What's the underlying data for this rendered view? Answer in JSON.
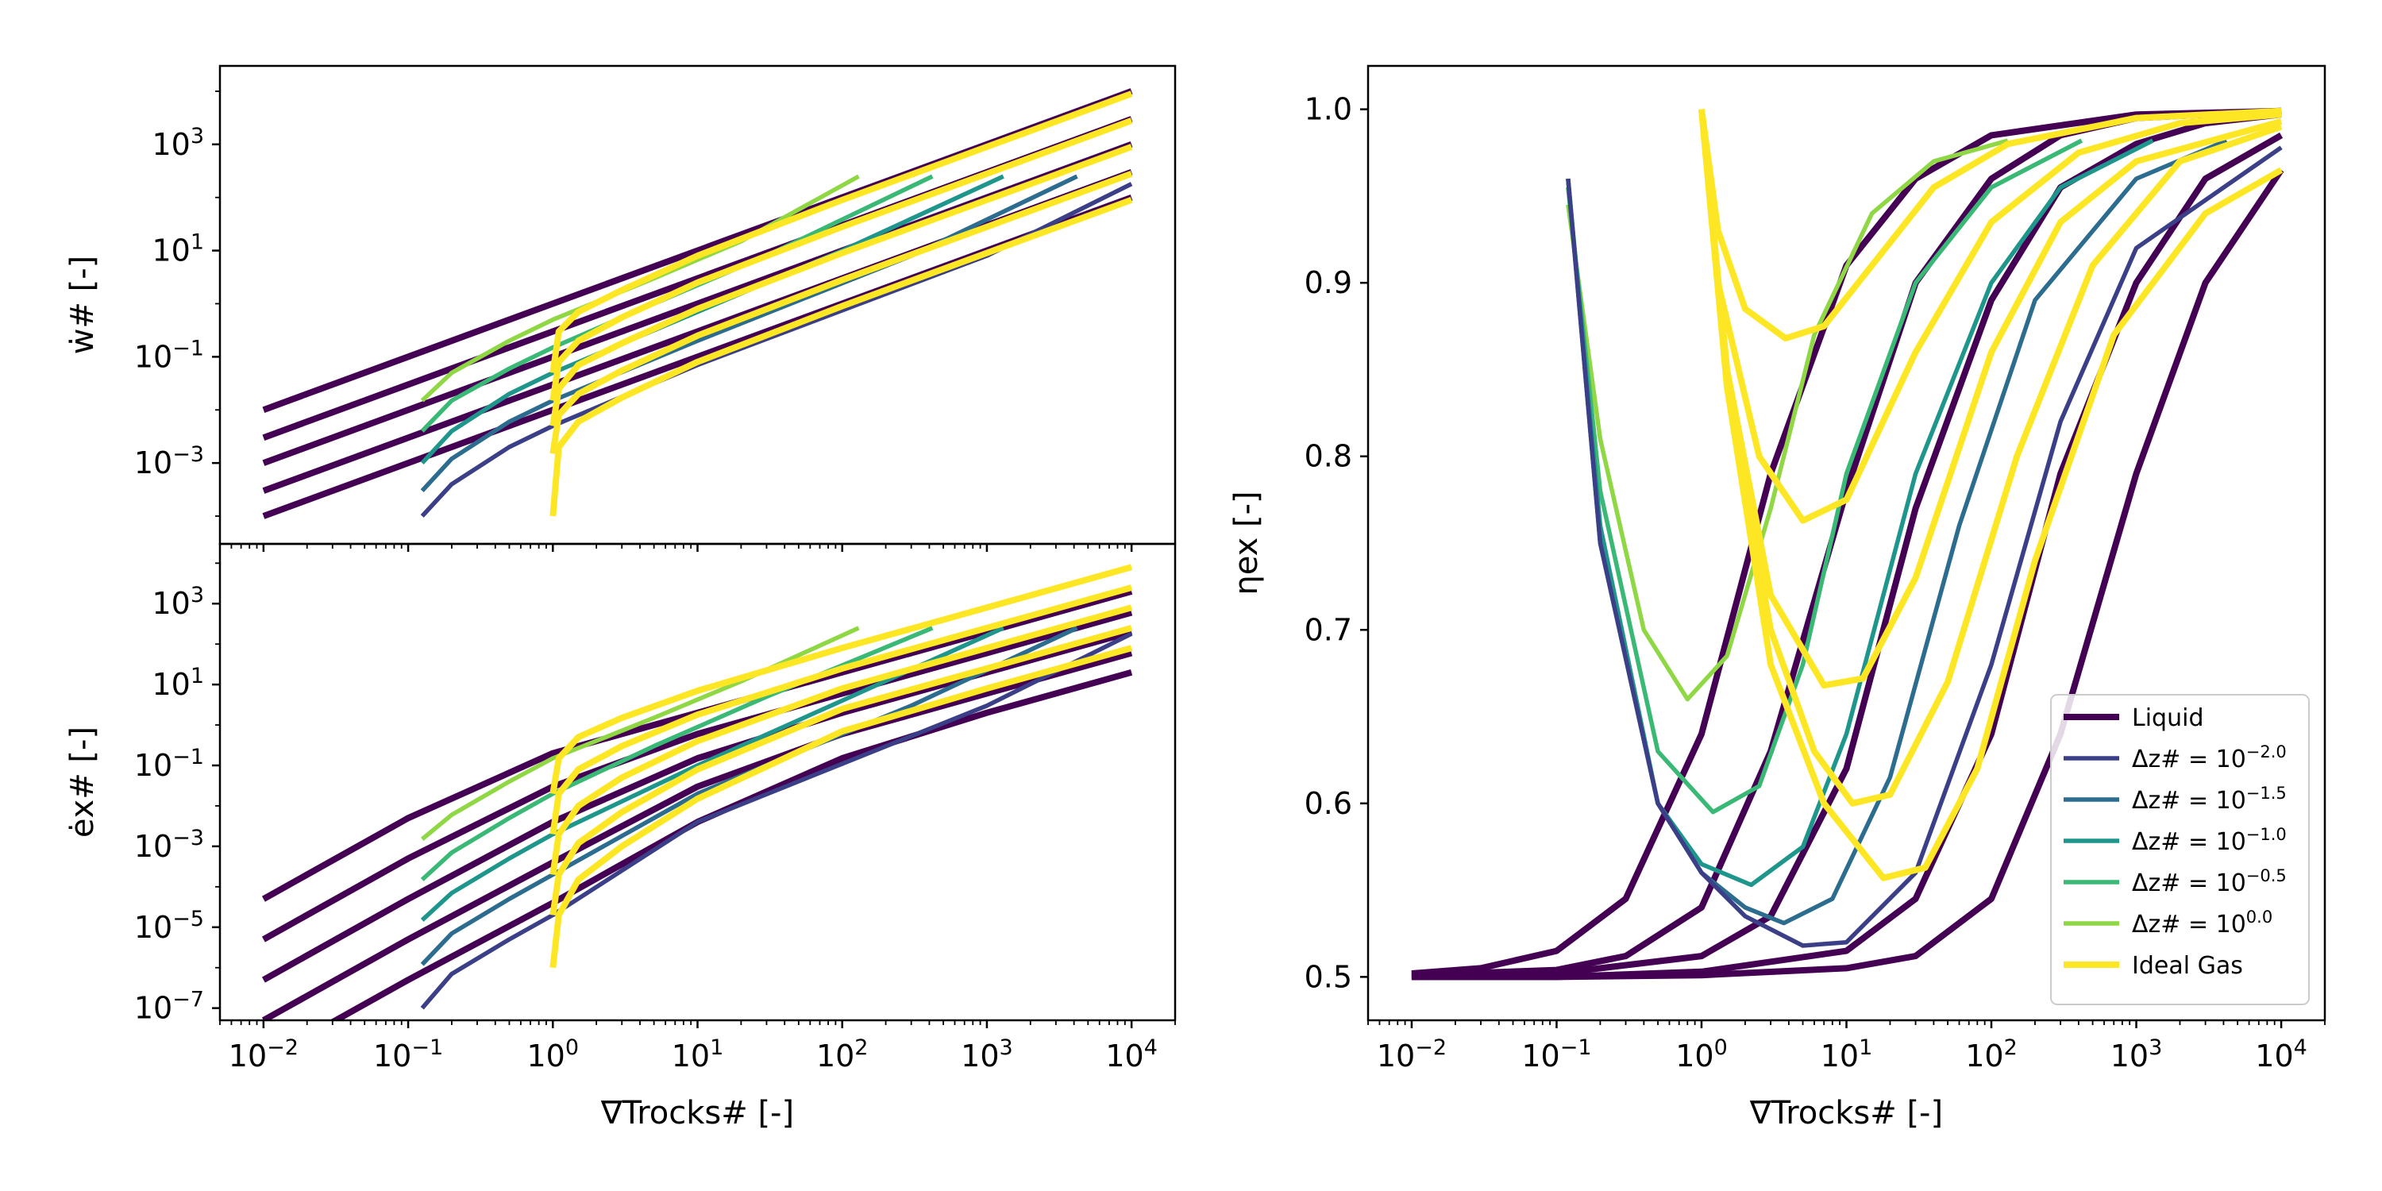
{
  "colors": {
    "liquid": "#440154",
    "dz_-2.0": "#3b3f87",
    "dz_-1.5": "#2c6c8e",
    "dz_-1.0": "#1f968b",
    "dz_-0.5": "#3ab875",
    "dz_0.0": "#8fd744",
    "ideal_gas": "#fde725"
  },
  "chart_data": [
    {
      "type": "line",
      "panel": "top-left",
      "xscale": "log",
      "yscale": "log",
      "xlim": [
        0.005,
        20000
      ],
      "ylim": [
        3e-05,
        30000
      ],
      "ylabel": "ẇ# [-]",
      "yticks": [
        "10^-3",
        "10^-1",
        "10^1",
        "10^3"
      ],
      "series": [
        {
          "group": "liquid",
          "x": [
            0.01,
            10000
          ],
          "y": [
            0.01,
            10000
          ]
        },
        {
          "group": "liquid",
          "x": [
            0.01,
            10000
          ],
          "y": [
            0.003,
            3000
          ]
        },
        {
          "group": "liquid",
          "x": [
            0.01,
            10000
          ],
          "y": [
            0.001,
            1000
          ]
        },
        {
          "group": "liquid",
          "x": [
            0.01,
            10000
          ],
          "y": [
            0.0003,
            300
          ]
        },
        {
          "group": "liquid",
          "x": [
            0.01,
            10000
          ],
          "y": [
            0.0001,
            100
          ]
        },
        {
          "group": "dz_0.0",
          "x": [
            0.125,
            0.2,
            0.5,
            1,
            5,
            20,
            130
          ],
          "y": [
            0.015,
            0.05,
            0.2,
            0.5,
            3,
            15,
            250
          ]
        },
        {
          "group": "dz_-0.5",
          "x": [
            0.125,
            0.2,
            0.5,
            1,
            5,
            30,
            420
          ],
          "y": [
            0.004,
            0.015,
            0.06,
            0.15,
            1,
            8,
            250
          ]
        },
        {
          "group": "dz_-1.0",
          "x": [
            0.125,
            0.2,
            0.5,
            1,
            10,
            100,
            1300
          ],
          "y": [
            0.001,
            0.004,
            0.02,
            0.05,
            0.7,
            10,
            250
          ]
        },
        {
          "group": "dz_-1.5",
          "x": [
            0.125,
            0.2,
            0.5,
            1,
            10,
            300,
            4200
          ],
          "y": [
            0.0003,
            0.0012,
            0.006,
            0.015,
            0.2,
            8,
            250
          ]
        },
        {
          "group": "dz_-2.0",
          "x": [
            0.125,
            0.2,
            0.5,
            1,
            10,
            1000,
            10000
          ],
          "y": [
            0.0001,
            0.0004,
            0.002,
            0.005,
            0.07,
            8,
            180
          ]
        },
        {
          "group": "ideal_gas",
          "x": [
            1,
            1.1,
            1.5,
            3,
            10,
            100,
            1000,
            10000
          ],
          "y": [
            0.05,
            0.3,
            0.7,
            1.8,
            8,
            90,
            900,
            9000
          ]
        },
        {
          "group": "ideal_gas",
          "x": [
            1,
            1.1,
            1.5,
            3,
            10,
            100,
            1000,
            10000
          ],
          "y": [
            0.015,
            0.08,
            0.2,
            0.55,
            2.5,
            28,
            280,
            2800
          ]
        },
        {
          "group": "ideal_gas",
          "x": [
            1,
            1.1,
            1.5,
            3,
            10,
            100,
            1000,
            10000
          ],
          "y": [
            0.005,
            0.025,
            0.07,
            0.18,
            0.8,
            9,
            90,
            900
          ]
        },
        {
          "group": "ideal_gas",
          "x": [
            1,
            1.1,
            1.5,
            3,
            10,
            100,
            1000,
            10000
          ],
          "y": [
            0.0015,
            0.008,
            0.02,
            0.055,
            0.25,
            2.8,
            28,
            280
          ]
        },
        {
          "group": "ideal_gas",
          "x": [
            1,
            1.1,
            1.5,
            3,
            10,
            100,
            1000,
            10000
          ],
          "y": [
            0.0001,
            0.002,
            0.006,
            0.017,
            0.08,
            0.9,
            9,
            90
          ]
        }
      ]
    },
    {
      "type": "line",
      "panel": "bottom-left",
      "xscale": "log",
      "yscale": "log",
      "xlim": [
        0.005,
        20000
      ],
      "ylim": [
        5e-08,
        30000
      ],
      "xlabel": "∇Trocks# [-]",
      "ylabel": "ėx# [-]",
      "xticks": [
        "10^-2",
        "10^-1",
        "10^0",
        "10^1",
        "10^2",
        "10^3",
        "10^4"
      ],
      "yticks": [
        "10^-7",
        "10^-5",
        "10^-3",
        "10^-1",
        "10^1",
        "10^3"
      ],
      "series": [
        {
          "group": "liquid",
          "x": [
            0.01,
            0.1,
            1,
            10,
            100,
            1000,
            10000
          ],
          "y": [
            5e-05,
            0.005,
            0.2,
            2,
            20,
            200,
            2000
          ]
        },
        {
          "group": "liquid",
          "x": [
            0.01,
            0.1,
            1,
            10,
            100,
            1000,
            10000
          ],
          "y": [
            5e-06,
            0.0005,
            0.03,
            0.6,
            6,
            60,
            600
          ]
        },
        {
          "group": "liquid",
          "x": [
            0.01,
            0.1,
            1,
            10,
            100,
            1000,
            10000
          ],
          "y": [
            5e-07,
            5e-05,
            0.004,
            0.15,
            2,
            20,
            200
          ]
        },
        {
          "group": "liquid",
          "x": [
            0.01,
            0.1,
            1,
            10,
            100,
            1000,
            10000
          ],
          "y": [
            5e-08,
            5e-06,
            0.0004,
            0.03,
            0.6,
            6,
            60
          ]
        },
        {
          "group": "liquid",
          "x": [
            0.01,
            0.1,
            1,
            10,
            100,
            1000,
            10000
          ],
          "y": [
            5e-09,
            5e-07,
            4e-05,
            0.004,
            0.15,
            2,
            20
          ]
        },
        {
          "group": "dz_0.0",
          "x": [
            0.125,
            0.2,
            0.5,
            1,
            5,
            20,
            130
          ],
          "y": [
            0.0015,
            0.006,
            0.04,
            0.15,
            1.5,
            12,
            250
          ]
        },
        {
          "group": "dz_-0.5",
          "x": [
            0.125,
            0.2,
            0.5,
            1,
            5,
            30,
            420
          ],
          "y": [
            0.00015,
            0.0007,
            0.005,
            0.02,
            0.3,
            5,
            250
          ]
        },
        {
          "group": "dz_-1.0",
          "x": [
            0.125,
            0.2,
            0.5,
            1,
            10,
            100,
            1300
          ],
          "y": [
            1.5e-05,
            7e-05,
            0.0005,
            0.002,
            0.1,
            4,
            250
          ]
        },
        {
          "group": "dz_-1.5",
          "x": [
            0.125,
            0.2,
            0.5,
            1,
            10,
            300,
            4200
          ],
          "y": [
            1.2e-06,
            7e-06,
            5e-05,
            0.0002,
            0.02,
            3,
            250
          ]
        },
        {
          "group": "dz_-2.0",
          "x": [
            0.125,
            0.2,
            0.5,
            1,
            10,
            1000,
            10000
          ],
          "y": [
            1e-07,
            7e-07,
            5e-06,
            2e-05,
            0.004,
            3,
            180
          ]
        },
        {
          "group": "ideal_gas",
          "x": [
            1,
            1.1,
            1.5,
            3,
            10,
            100,
            1000,
            10000
          ],
          "y": [
            0.02,
            0.15,
            0.5,
            1.5,
            7,
            80,
            800,
            8000
          ]
        },
        {
          "group": "ideal_gas",
          "x": [
            1,
            1.1,
            1.5,
            3,
            10,
            100,
            1000,
            10000
          ],
          "y": [
            0.002,
            0.02,
            0.08,
            0.3,
            1.8,
            25,
            250,
            2500
          ]
        },
        {
          "group": "ideal_gas",
          "x": [
            1,
            1.1,
            1.5,
            3,
            10,
            100,
            1000,
            10000
          ],
          "y": [
            0.0002,
            0.002,
            0.01,
            0.05,
            0.4,
            8,
            80,
            800
          ]
        },
        {
          "group": "ideal_gas",
          "x": [
            1,
            1.1,
            1.5,
            3,
            10,
            100,
            1000,
            10000
          ],
          "y": [
            2e-05,
            0.0002,
            0.0012,
            0.007,
            0.08,
            2.5,
            25,
            250
          ]
        },
        {
          "group": "ideal_gas",
          "x": [
            1,
            1.1,
            1.5,
            3,
            10,
            100,
            1000,
            10000
          ],
          "y": [
            1e-06,
            2e-05,
            0.00015,
            0.001,
            0.015,
            0.7,
            8,
            80
          ]
        }
      ]
    },
    {
      "type": "line",
      "panel": "right",
      "xscale": "log",
      "yscale": "linear",
      "xlim": [
        0.005,
        20000
      ],
      "ylim": [
        0.475,
        1.025
      ],
      "xlabel": "∇Trocks# [-]",
      "ylabel": "ηex [-]",
      "xticks": [
        "10^-2",
        "10^-1",
        "10^0",
        "10^1",
        "10^2",
        "10^3",
        "10^4"
      ],
      "yticks": [
        "0.5",
        "0.6",
        "0.7",
        "0.8",
        "0.9",
        "1.0"
      ],
      "legend": {
        "position": "lower-right",
        "entries": [
          {
            "group": "liquid",
            "label": "Liquid"
          },
          {
            "group": "dz_-2.0",
            "label": "Δz# = 10^-2.0"
          },
          {
            "group": "dz_-1.5",
            "label": "Δz# = 10^-1.5"
          },
          {
            "group": "dz_-1.0",
            "label": "Δz# = 10^-1.0"
          },
          {
            "group": "dz_-0.5",
            "label": "Δz# = 10^-0.5"
          },
          {
            "group": "dz_0.0",
            "label": "Δz# = 10^0.0"
          },
          {
            "group": "ideal_gas",
            "label": "Ideal Gas"
          }
        ]
      },
      "series": [
        {
          "group": "liquid",
          "x": [
            0.01,
            0.03,
            0.1,
            0.3,
            1,
            3,
            10,
            30,
            100,
            1000,
            10000
          ],
          "y": [
            0.502,
            0.505,
            0.515,
            0.545,
            0.64,
            0.79,
            0.91,
            0.96,
            0.985,
            0.997,
            0.999
          ]
        },
        {
          "group": "liquid",
          "x": [
            0.01,
            0.1,
            0.3,
            1,
            3,
            10,
            30,
            100,
            300,
            1000,
            10000
          ],
          "y": [
            0.501,
            0.504,
            0.512,
            0.54,
            0.63,
            0.78,
            0.9,
            0.96,
            0.985,
            0.995,
            0.999
          ]
        },
        {
          "group": "liquid",
          "x": [
            0.01,
            0.1,
            1,
            3,
            10,
            30,
            100,
            300,
            1000,
            3000,
            10000
          ],
          "y": [
            0.5,
            0.502,
            0.512,
            0.535,
            0.62,
            0.77,
            0.89,
            0.955,
            0.98,
            0.992,
            0.997
          ]
        },
        {
          "group": "liquid",
          "x": [
            0.01,
            0.1,
            1,
            10,
            30,
            100,
            300,
            1000,
            3000,
            10000
          ],
          "y": [
            0.5,
            0.5,
            0.503,
            0.515,
            0.545,
            0.64,
            0.79,
            0.9,
            0.96,
            0.985
          ]
        },
        {
          "group": "liquid",
          "x": [
            0.01,
            0.1,
            1,
            10,
            30,
            100,
            300,
            1000,
            3000,
            10000
          ],
          "y": [
            0.5,
            0.5,
            0.501,
            0.505,
            0.512,
            0.545,
            0.64,
            0.79,
            0.9,
            0.965
          ]
        },
        {
          "group": "dz_0.0",
          "x": [
            0.12,
            0.2,
            0.4,
            0.8,
            1.5,
            3,
            6,
            15,
            40,
            130
          ],
          "y": [
            0.945,
            0.81,
            0.7,
            0.66,
            0.685,
            0.77,
            0.87,
            0.94,
            0.97,
            0.982
          ]
        },
        {
          "group": "dz_-0.5",
          "x": [
            0.12,
            0.2,
            0.5,
            1.2,
            2.5,
            5,
            10,
            30,
            100,
            420
          ],
          "y": [
            0.955,
            0.78,
            0.63,
            0.595,
            0.61,
            0.68,
            0.79,
            0.9,
            0.955,
            0.982
          ]
        },
        {
          "group": "dz_-1.0",
          "x": [
            0.12,
            0.2,
            0.5,
            1,
            2.2,
            5,
            10,
            30,
            100,
            300,
            1300
          ],
          "y": [
            0.96,
            0.76,
            0.6,
            0.565,
            0.553,
            0.575,
            0.64,
            0.79,
            0.9,
            0.955,
            0.982
          ]
        },
        {
          "group": "dz_-1.5",
          "x": [
            0.12,
            0.2,
            0.5,
            1,
            2,
            3.7,
            8,
            20,
            60,
            200,
            1000,
            4200
          ],
          "y": [
            0.96,
            0.75,
            0.6,
            0.56,
            0.54,
            0.531,
            0.545,
            0.615,
            0.76,
            0.89,
            0.96,
            0.982
          ]
        },
        {
          "group": "dz_-2.0",
          "x": [
            0.12,
            0.2,
            0.5,
            1,
            2,
            5,
            10,
            30,
            100,
            300,
            1000,
            10000
          ],
          "y": [
            0.96,
            0.75,
            0.6,
            0.56,
            0.535,
            0.518,
            0.52,
            0.56,
            0.68,
            0.82,
            0.92,
            0.978
          ]
        },
        {
          "group": "ideal_gas",
          "x": [
            1,
            1.3,
            2,
            3.8,
            7,
            15,
            40,
            130,
            1000,
            10000
          ],
          "y": [
            1.0,
            0.93,
            0.885,
            0.868,
            0.875,
            0.91,
            0.955,
            0.98,
            0.995,
            0.999
          ]
        },
        {
          "group": "ideal_gas",
          "x": [
            1,
            1.3,
            2.5,
            5,
            10,
            30,
            100,
            400,
            2000,
            10000
          ],
          "y": [
            1.0,
            0.9,
            0.8,
            0.763,
            0.775,
            0.86,
            0.935,
            0.975,
            0.992,
            0.997
          ]
        },
        {
          "group": "ideal_gas",
          "x": [
            1,
            1.5,
            3,
            7,
            13,
            30,
            100,
            300,
            1000,
            10000
          ],
          "y": [
            1.0,
            0.85,
            0.72,
            0.668,
            0.672,
            0.73,
            0.86,
            0.935,
            0.97,
            0.993
          ]
        },
        {
          "group": "ideal_gas",
          "x": [
            1,
            1.5,
            3,
            6,
            11,
            20,
            50,
            150,
            500,
            2000,
            10000
          ],
          "y": [
            1.0,
            0.84,
            0.7,
            0.63,
            0.6,
            0.605,
            0.67,
            0.8,
            0.91,
            0.97,
            0.99
          ]
        },
        {
          "group": "ideal_gas",
          "x": [
            1,
            1.5,
            3,
            7,
            18,
            35,
            80,
            200,
            700,
            3000,
            10000
          ],
          "y": [
            1.0,
            0.84,
            0.68,
            0.6,
            0.557,
            0.563,
            0.62,
            0.74,
            0.87,
            0.94,
            0.965
          ]
        }
      ]
    }
  ]
}
